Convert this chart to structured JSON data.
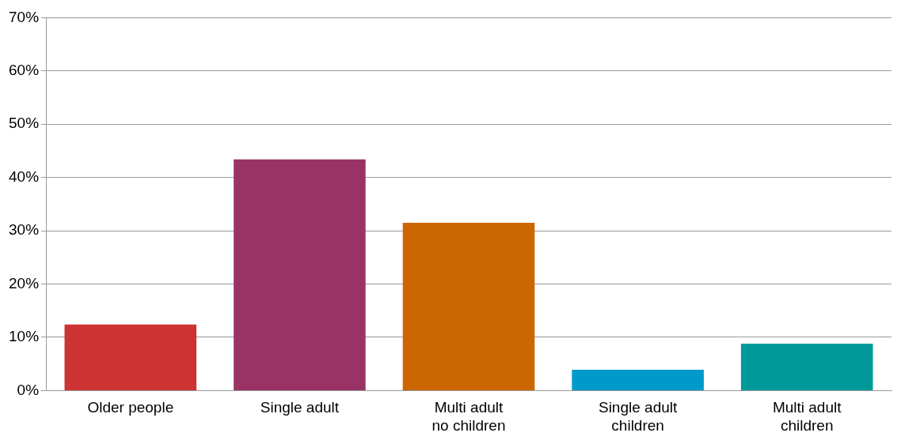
{
  "chart_data": {
    "type": "bar",
    "categories": [
      "Older people",
      "Single adult",
      "Multi adult no children",
      "Single adult children",
      "Multi adult children"
    ],
    "values": [
      12.4,
      43.4,
      31.5,
      3.9,
      8.8
    ],
    "colors": [
      "#cc3333",
      "#993366",
      "#cc6600",
      "#0099cc",
      "#009999"
    ],
    "ylim": [
      0,
      70
    ],
    "yticks": [
      {
        "value": 0,
        "label": "0%"
      },
      {
        "value": 10,
        "label": "10%"
      },
      {
        "value": 20,
        "label": "20%"
      },
      {
        "value": 30,
        "label": "30%"
      },
      {
        "value": 40,
        "label": "40%"
      },
      {
        "value": 50,
        "label": "50%"
      },
      {
        "value": 60,
        "label": "60%"
      },
      {
        "value": 70,
        "label": "70%"
      }
    ],
    "grid": "y",
    "legend": false
  }
}
